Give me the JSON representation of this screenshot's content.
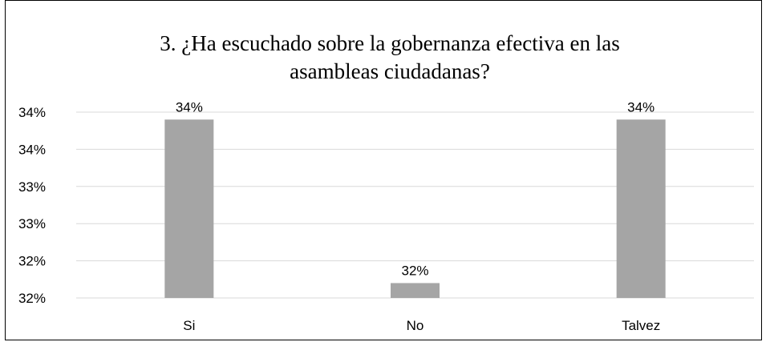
{
  "chart_data": {
    "type": "bar",
    "title_lines": [
      "3. ¿Ha escuchado sobre la gobernanza efectiva en las",
      "asambleas ciudadanas?"
    ],
    "categories": [
      "Si",
      "No",
      "Talvez"
    ],
    "values": [
      34.4,
      32.2,
      34.4
    ],
    "data_labels": [
      "34%",
      "32%",
      "34%"
    ],
    "y_ticks": [
      32.0,
      32.5,
      33.0,
      33.5,
      34.0,
      34.5
    ],
    "y_tick_labels": [
      "32%",
      "32%",
      "33%",
      "33%",
      "34%",
      "34%"
    ],
    "ylim": [
      32.0,
      34.5
    ],
    "grid": true,
    "legend": "none",
    "bar_color": "#a5a5a5",
    "grid_color": "#d9d9d9"
  }
}
